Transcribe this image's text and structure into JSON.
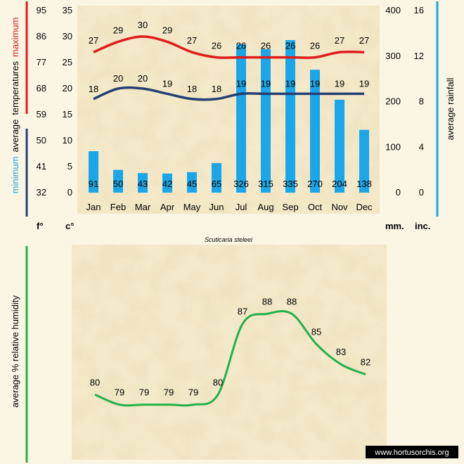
{
  "species": "Scuticaria steleei",
  "watermark": "www.hortusorchis.org",
  "colors": {
    "background": "#fbf6e4",
    "panel": "#f4e9c9",
    "maximum": "#e01b1b",
    "minimum": "#243f73",
    "rainfall": "#1aa6e8",
    "humidity": "#22b14c",
    "text": "#1a1a1a"
  },
  "chart_data": [
    {
      "type": "bar+line",
      "categories": [
        "Jan",
        "Feb",
        "Mar",
        "Apr",
        "May",
        "Jun",
        "Jul",
        "Aug",
        "Sep",
        "Oct",
        "Nov",
        "Dec"
      ],
      "series": [
        {
          "name": "maximum",
          "kind": "line",
          "axis": "temperature_c",
          "values": [
            27,
            29,
            30,
            29,
            27,
            26,
            26,
            26,
            26,
            26,
            27,
            27
          ]
        },
        {
          "name": "minimum",
          "kind": "line",
          "axis": "temperature_c",
          "values": [
            18,
            20,
            20,
            19,
            18,
            18,
            19,
            19,
            19,
            19,
            19,
            19
          ]
        },
        {
          "name": "rainfall",
          "kind": "bar",
          "axis": "rainfall_mm",
          "values": [
            91,
            50,
            43,
            42,
            45,
            65,
            326,
            315,
            335,
            270,
            204,
            138
          ]
        }
      ],
      "left_axis_label": {
        "minimum": "minimum",
        "average": "average",
        "temperatures": "temperatures",
        "maximum": "maximum"
      },
      "right_axis_label": "average rainfall",
      "axis_f": {
        "unit": "f°",
        "ticks": [
          "32",
          "41",
          "50",
          "59",
          "68",
          "77",
          "86",
          "95"
        ]
      },
      "axis_c": {
        "unit": "c°",
        "ticks": [
          "0",
          "5",
          "10",
          "15",
          "20",
          "25",
          "30",
          "35"
        ],
        "ylim": [
          0,
          35
        ]
      },
      "axis_mm": {
        "unit": "mm.",
        "ticks": [
          "0",
          "100",
          "200",
          "300",
          "400"
        ],
        "ylim": [
          0,
          400
        ]
      },
      "axis_inch": {
        "unit": "inc.",
        "ticks": [
          "0",
          "4",
          "8",
          "12",
          "16"
        ]
      }
    },
    {
      "type": "line",
      "categories": [
        "Jan",
        "Feb",
        "Mar",
        "Apr",
        "May",
        "Jun",
        "Jul",
        "Aug",
        "Sep",
        "Oct",
        "Nov",
        "Dec"
      ],
      "series": [
        {
          "name": "humidity",
          "values": [
            80,
            79,
            79,
            79,
            79,
            80,
            87,
            88,
            88,
            85,
            83,
            82
          ]
        }
      ],
      "ylabel": "average %  relative humidity"
    }
  ]
}
